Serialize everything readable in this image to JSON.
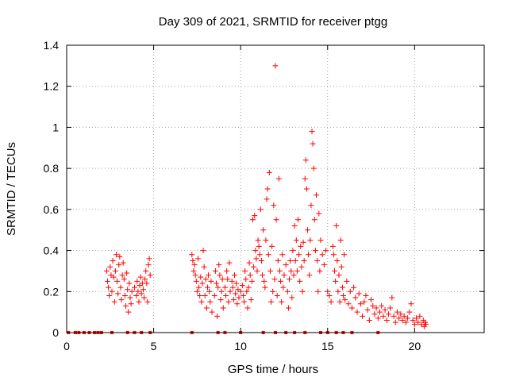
{
  "chart_data": {
    "type": "scatter",
    "title": "Day 309 of 2021, SRMTID for receiver ptgg",
    "xlabel": "GPS time / hours",
    "ylabel": "SRMTID / TECUs",
    "xlim": [
      0,
      24
    ],
    "ylim": [
      0,
      1.4
    ],
    "x_ticks": [
      0,
      5,
      10,
      15,
      20
    ],
    "x_tick_labels": [
      "0",
      "5",
      "10",
      "15",
      "20"
    ],
    "y_ticks": [
      0,
      0.2,
      0.4,
      0.6,
      0.8,
      1.0,
      1.2,
      1.4
    ],
    "y_tick_labels": [
      "0",
      "0.2",
      "0.4",
      "0.6",
      "0.8",
      "1",
      "1.2",
      "1.4"
    ],
    "grid": true,
    "marker": "+",
    "series": [
      {
        "name": "SRMTID",
        "color": "#ff0000",
        "points": [
          [
            2.3,
            0.3
          ],
          [
            2.35,
            0.25
          ],
          [
            2.4,
            0.22
          ],
          [
            2.45,
            0.18
          ],
          [
            2.5,
            0.32
          ],
          [
            2.55,
            0.28
          ],
          [
            2.6,
            0.2
          ],
          [
            2.65,
            0.35
          ],
          [
            2.7,
            0.27
          ],
          [
            2.75,
            0.15
          ],
          [
            2.8,
            0.3
          ],
          [
            2.85,
            0.38
          ],
          [
            2.9,
            0.25
          ],
          [
            2.95,
            0.19
          ],
          [
            3.0,
            0.33
          ],
          [
            3.05,
            0.37
          ],
          [
            3.1,
            0.22
          ],
          [
            3.15,
            0.16
          ],
          [
            3.2,
            0.28
          ],
          [
            3.25,
            0.34
          ],
          [
            3.3,
            0.26
          ],
          [
            3.35,
            0.18
          ],
          [
            3.4,
            0.13
          ],
          [
            3.45,
            0.29
          ],
          [
            3.5,
            0.21
          ],
          [
            3.55,
            0.1
          ],
          [
            3.6,
            0.24
          ],
          [
            3.65,
            0.17
          ],
          [
            3.7,
            0.14
          ],
          [
            3.75,
            0.2
          ],
          [
            3.9,
            0.22
          ],
          [
            4.0,
            0.18
          ],
          [
            4.05,
            0.25
          ],
          [
            4.1,
            0.2
          ],
          [
            4.15,
            0.15
          ],
          [
            4.2,
            0.23
          ],
          [
            4.25,
            0.27
          ],
          [
            4.3,
            0.19
          ],
          [
            4.35,
            0.24
          ],
          [
            4.4,
            0.21
          ],
          [
            4.45,
            0.17
          ],
          [
            4.5,
            0.26
          ],
          [
            4.55,
            0.3
          ],
          [
            4.6,
            0.24
          ],
          [
            4.65,
            0.15
          ],
          [
            4.7,
            0.33
          ],
          [
            4.75,
            0.36
          ],
          [
            4.8,
            0.28
          ],
          [
            7.2,
            0.38
          ],
          [
            7.25,
            0.35
          ],
          [
            7.3,
            0.3
          ],
          [
            7.35,
            0.33
          ],
          [
            7.4,
            0.28
          ],
          [
            7.45,
            0.25
          ],
          [
            7.5,
            0.2
          ],
          [
            7.55,
            0.36
          ],
          [
            7.6,
            0.22
          ],
          [
            7.65,
            0.18
          ],
          [
            7.7,
            0.27
          ],
          [
            7.75,
            0.15
          ],
          [
            7.8,
            0.24
          ],
          [
            7.85,
            0.4
          ],
          [
            7.9,
            0.32
          ],
          [
            7.95,
            0.18
          ],
          [
            8.0,
            0.26
          ],
          [
            8.05,
            0.12
          ],
          [
            8.1,
            0.22
          ],
          [
            8.15,
            0.28
          ],
          [
            8.2,
            0.2
          ],
          [
            8.25,
            0.15
          ],
          [
            8.3,
            0.25
          ],
          [
            8.35,
            0.1
          ],
          [
            8.5,
            0.18
          ],
          [
            8.55,
            0.3
          ],
          [
            8.6,
            0.24
          ],
          [
            8.65,
            0.08
          ],
          [
            8.7,
            0.22
          ],
          [
            8.75,
            0.33
          ],
          [
            8.8,
            0.28
          ],
          [
            8.85,
            0.16
          ],
          [
            8.9,
            0.2
          ],
          [
            8.95,
            0.26
          ],
          [
            9.0,
            0.12
          ],
          [
            9.1,
            0.22
          ],
          [
            9.15,
            0.18
          ],
          [
            9.2,
            0.3
          ],
          [
            9.25,
            0.26
          ],
          [
            9.3,
            0.15
          ],
          [
            9.35,
            0.34
          ],
          [
            9.4,
            0.2
          ],
          [
            9.5,
            0.25
          ],
          [
            9.55,
            0.22
          ],
          [
            9.6,
            0.16
          ],
          [
            9.65,
            0.28
          ],
          [
            9.7,
            0.19
          ],
          [
            9.75,
            0.24
          ],
          [
            9.8,
            0.14
          ],
          [
            9.85,
            0.21
          ],
          [
            9.9,
            0.17
          ],
          [
            10.0,
            0.2
          ],
          [
            10.1,
            0.23
          ],
          [
            10.15,
            0.18
          ],
          [
            10.2,
            0.15
          ],
          [
            10.25,
            0.3
          ],
          [
            10.3,
            0.26
          ],
          [
            10.35,
            0.2
          ],
          [
            10.4,
            0.12
          ],
          [
            10.45,
            0.22
          ],
          [
            10.5,
            0.34
          ],
          [
            10.55,
            0.28
          ],
          [
            10.6,
            0.16
          ],
          [
            10.65,
            0.25
          ],
          [
            10.7,
            0.55
          ],
          [
            10.75,
            0.32
          ],
          [
            10.8,
            0.57
          ],
          [
            10.85,
            0.4
          ],
          [
            10.9,
            0.36
          ],
          [
            10.95,
            0.3
          ],
          [
            11.0,
            0.45
          ],
          [
            11.05,
            0.42
          ],
          [
            11.1,
            0.38
          ],
          [
            11.15,
            0.6
          ],
          [
            11.2,
            0.35
          ],
          [
            11.25,
            0.28
          ],
          [
            11.3,
            0.5
          ],
          [
            11.35,
            0.25
          ],
          [
            11.4,
            0.22
          ],
          [
            11.45,
            0.45
          ],
          [
            11.5,
            0.65
          ],
          [
            11.55,
            0.7
          ],
          [
            11.6,
            0.38
          ],
          [
            11.65,
            0.78
          ],
          [
            11.7,
            0.3
          ],
          [
            11.75,
            0.15
          ],
          [
            11.8,
            0.42
          ],
          [
            11.85,
            0.2
          ],
          [
            11.9,
            0.62
          ],
          [
            11.95,
            0.26
          ],
          [
            12.0,
            1.3
          ],
          [
            12.05,
            0.55
          ],
          [
            12.1,
            0.18
          ],
          [
            12.15,
            0.35
          ],
          [
            12.2,
            0.75
          ],
          [
            12.25,
            0.3
          ],
          [
            12.3,
            0.25
          ],
          [
            12.35,
            0.15
          ],
          [
            12.4,
            0.38
          ],
          [
            12.45,
            0.22
          ],
          [
            12.5,
            0.28
          ],
          [
            12.6,
            0.33
          ],
          [
            12.7,
            0.2
          ],
          [
            12.75,
            0.12
          ],
          [
            12.8,
            0.26
          ],
          [
            12.85,
            0.35
          ],
          [
            12.9,
            0.3
          ],
          [
            12.95,
            0.17
          ],
          [
            13.0,
            0.4
          ],
          [
            13.05,
            0.28
          ],
          [
            13.1,
            0.52
          ],
          [
            13.15,
            0.35
          ],
          [
            13.2,
            0.45
          ],
          [
            13.25,
            0.3
          ],
          [
            13.3,
            0.55
          ],
          [
            13.35,
            0.38
          ],
          [
            13.4,
            0.25
          ],
          [
            13.45,
            0.42
          ],
          [
            13.5,
            0.32
          ],
          [
            13.55,
            0.2
          ],
          [
            13.6,
            0.44
          ],
          [
            13.65,
            0.35
          ],
          [
            13.7,
            0.75
          ],
          [
            13.75,
            0.84
          ],
          [
            13.8,
            0.7
          ],
          [
            13.85,
            0.5
          ],
          [
            13.9,
            0.38
          ],
          [
            13.95,
            0.28
          ],
          [
            14.0,
            0.45
          ],
          [
            14.05,
            0.62
          ],
          [
            14.1,
            0.98
          ],
          [
            14.15,
            0.92
          ],
          [
            14.2,
            0.8
          ],
          [
            14.25,
            0.55
          ],
          [
            14.3,
            0.4
          ],
          [
            14.35,
            0.67
          ],
          [
            14.4,
            0.35
          ],
          [
            14.45,
            0.2
          ],
          [
            14.5,
            0.58
          ],
          [
            14.55,
            0.3
          ],
          [
            14.6,
            0.45
          ],
          [
            14.7,
            0.38
          ],
          [
            14.8,
            0.33
          ],
          [
            14.9,
            0.4
          ],
          [
            15.0,
            0.2
          ],
          [
            15.1,
            0.18
          ],
          [
            15.2,
            0.15
          ],
          [
            15.3,
            0.42
          ],
          [
            15.35,
            0.38
          ],
          [
            15.4,
            0.3
          ],
          [
            15.45,
            0.25
          ],
          [
            15.5,
            0.52
          ],
          [
            15.55,
            0.35
          ],
          [
            15.6,
            0.2
          ],
          [
            15.65,
            0.28
          ],
          [
            15.7,
            0.15
          ],
          [
            15.75,
            0.45
          ],
          [
            15.8,
            0.32
          ],
          [
            15.85,
            0.22
          ],
          [
            15.9,
            0.18
          ],
          [
            15.95,
            0.38
          ],
          [
            16.0,
            0.16
          ],
          [
            16.1,
            0.25
          ],
          [
            16.2,
            0.14
          ],
          [
            16.3,
            0.2
          ],
          [
            16.4,
            0.12
          ],
          [
            16.5,
            0.22
          ],
          [
            16.6,
            0.17
          ],
          [
            16.7,
            0.1
          ],
          [
            16.8,
            0.19
          ],
          [
            16.9,
            0.14
          ],
          [
            17.0,
            0.08
          ],
          [
            17.1,
            0.15
          ],
          [
            17.2,
            0.18
          ],
          [
            17.3,
            0.11
          ],
          [
            17.4,
            0.06
          ],
          [
            17.5,
            0.16
          ],
          [
            17.6,
            0.13
          ],
          [
            17.7,
            0.09
          ],
          [
            17.8,
            0.12
          ],
          [
            17.9,
            0.07
          ],
          [
            18.0,
            0.1
          ],
          [
            18.1,
            0.13
          ],
          [
            18.2,
            0.08
          ],
          [
            18.3,
            0.11
          ],
          [
            18.4,
            0.06
          ],
          [
            18.5,
            0.09
          ],
          [
            18.6,
            0.12
          ],
          [
            18.7,
            0.17
          ],
          [
            18.8,
            0.08
          ],
          [
            18.9,
            0.05
          ],
          [
            19.0,
            0.1
          ],
          [
            19.1,
            0.07
          ],
          [
            19.2,
            0.09
          ],
          [
            19.3,
            0.06
          ],
          [
            19.4,
            0.08
          ],
          [
            19.5,
            0.05
          ],
          [
            19.6,
            0.07
          ],
          [
            19.7,
            0.1
          ],
          [
            19.8,
            0.14
          ],
          [
            19.9,
            0.06
          ],
          [
            20.0,
            0.04
          ],
          [
            20.1,
            0.07
          ],
          [
            20.2,
            0.05
          ],
          [
            20.3,
            0.08
          ],
          [
            20.4,
            0.04
          ],
          [
            20.5,
            0.06
          ],
          [
            20.55,
            0.03
          ],
          [
            20.6,
            0.05
          ],
          [
            20.65,
            0.04
          ]
        ]
      }
    ],
    "zero_markers_x": [
      0.1,
      0.5,
      0.7,
      1.0,
      1.3,
      1.6,
      1.8,
      2.0,
      2.6,
      3.5,
      3.9,
      4.3,
      4.8,
      7.2,
      8.7,
      9.1,
      10.0,
      11.3,
      12.0,
      12.6,
      13.1,
      13.7,
      14.6,
      15.0,
      15.5,
      15.9,
      16.4,
      17.9
    ]
  }
}
